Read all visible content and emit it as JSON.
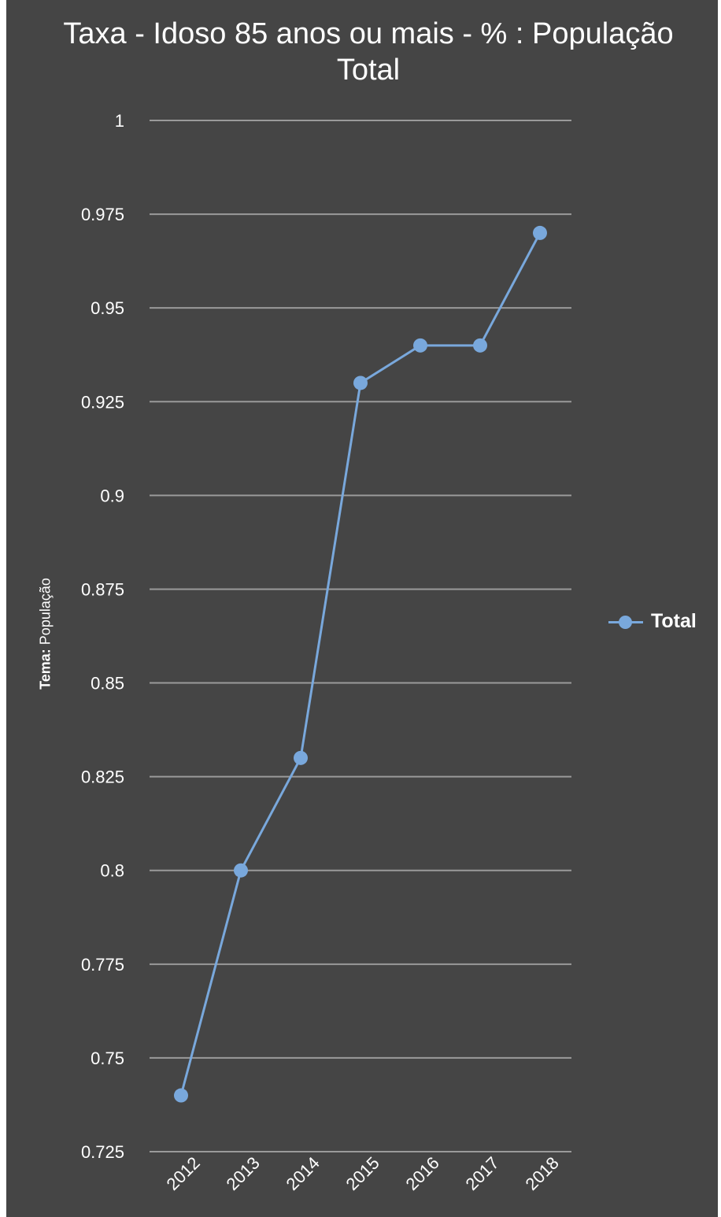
{
  "chart_data": {
    "type": "line",
    "title": "Taxa - Idoso 85 anos ou mais - % : População Total",
    "title_lines": [
      "Taxa - Idoso 85 anos ou mais - % : População",
      "Total"
    ],
    "ylabel_bold": "Tema:",
    "ylabel_rest": " População",
    "xlabel": "",
    "categories": [
      "2012",
      "2013",
      "2014",
      "2015",
      "2016",
      "2017",
      "2018"
    ],
    "series": [
      {
        "name": "Total",
        "values": [
          0.74,
          0.8,
          0.83,
          0.93,
          0.94,
          0.94,
          0.97
        ]
      }
    ],
    "ylim": [
      0.725,
      1
    ],
    "yticks": [
      "1",
      "0.975",
      "0.95",
      "0.925",
      "0.9",
      "0.875",
      "0.85",
      "0.825",
      "0.8",
      "0.775",
      "0.75",
      "0.725"
    ],
    "ytick_values": [
      1,
      0.975,
      0.95,
      0.925,
      0.9,
      0.875,
      0.85,
      0.825,
      0.8,
      0.775,
      0.75,
      0.725
    ],
    "grid": true,
    "legend_position": "right",
    "colors": {
      "background": "#454545",
      "series": "#79a8dc",
      "grid": "#9a9a9a",
      "text": "#ffffff"
    }
  }
}
